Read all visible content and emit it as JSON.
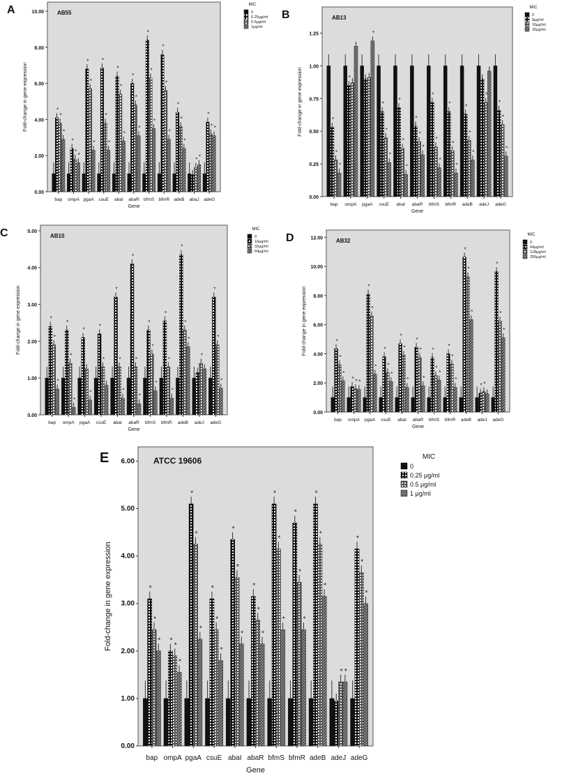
{
  "chart_data": [
    {
      "type": "bar",
      "panel": "A",
      "title": "AB55",
      "xlabel": "Gene",
      "ylabel": "Fold-change in gene expression",
      "ylim": [
        0,
        10.5
      ],
      "yticks": [
        "0.00",
        "2.00",
        "4.00",
        "6.00",
        "8.00",
        "10.00"
      ],
      "ytick_values": [
        0,
        2,
        4,
        6,
        8,
        10
      ],
      "legend_title": "MIC",
      "legend_position": "right",
      "categories": [
        "bap",
        "ompA",
        "pgaA",
        "csuE",
        "abaI",
        "abaR",
        "bfmS",
        "bfmR",
        "adeB",
        "abaJ",
        "adeG"
      ],
      "series": [
        {
          "name": "0",
          "values": [
            1,
            1,
            1,
            1,
            1,
            1,
            1,
            1,
            1,
            1,
            1
          ]
        },
        {
          "name": "0.25μg/ml",
          "values": [
            4.1,
            2.4,
            6.8,
            6.85,
            6.4,
            6.0,
            8.4,
            7.6,
            4.4,
            0.95,
            3.85
          ]
        },
        {
          "name": "0.5μg/ml",
          "values": [
            3.8,
            1.8,
            5.7,
            3.8,
            5.4,
            4.8,
            6.3,
            5.6,
            3.6,
            1.35,
            3.2
          ]
        },
        {
          "name": "1μg/ml",
          "values": [
            2.9,
            1.6,
            2.3,
            2.3,
            2.8,
            3.1,
            3.5,
            2.9,
            2.4,
            1.5,
            3.1
          ]
        }
      ],
      "significance_marker": "*"
    },
    {
      "type": "bar",
      "panel": "B",
      "title": "AB13",
      "xlabel": "Gene",
      "ylabel": "Fold-change in gene expression",
      "ylim": [
        0,
        1.45
      ],
      "yticks": [
        "0.00",
        "0.25",
        "0.50",
        "0.75",
        "1.00",
        "1.25"
      ],
      "ytick_values": [
        0,
        0.25,
        0.5,
        0.75,
        1,
        1.25
      ],
      "legend_title": "MIC",
      "legend_position": "right",
      "categories": [
        "bap",
        "ompA",
        "pgaA",
        "csuE",
        "abaI",
        "abaR",
        "bfmS",
        "bfmR",
        "adeB",
        "adeJ",
        "adeG"
      ],
      "series": [
        {
          "name": "0",
          "values": [
            1,
            1,
            1,
            1,
            1,
            1,
            1,
            1,
            1,
            1,
            1
          ]
        },
        {
          "name": "8μg/ml",
          "values": [
            0.53,
            0.85,
            0.9,
            0.65,
            0.68,
            0.54,
            0.72,
            0.65,
            0.63,
            0.9,
            0.66
          ]
        },
        {
          "name": "16μg/ml",
          "values": [
            0.28,
            0.87,
            0.91,
            0.45,
            0.37,
            0.42,
            0.38,
            0.35,
            0.43,
            0.72,
            0.55
          ]
        },
        {
          "name": "32μg/ml",
          "values": [
            0.18,
            1.15,
            1.19,
            0.26,
            0.17,
            0.32,
            0.22,
            0.18,
            0.28,
            0.96,
            0.31
          ]
        }
      ],
      "significance_marker": "*"
    },
    {
      "type": "bar",
      "panel": "C",
      "title": "AB10",
      "xlabel": "Gene",
      "ylabel": "Fold-change in gene expression",
      "ylim": [
        0,
        5.15
      ],
      "yticks": [
        "0.00",
        "1.00",
        "2.00",
        "3.00",
        "4.00",
        "5.00"
      ],
      "ytick_values": [
        0,
        1,
        2,
        3,
        4,
        5
      ],
      "legend_title": "MIC",
      "legend_position": "right",
      "categories": [
        "bap",
        "ompA",
        "pgaA",
        "csuE",
        "abaI",
        "abaR",
        "bfmS",
        "bfmR",
        "adeB",
        "adeJ",
        "adeG"
      ],
      "series": [
        {
          "name": "0",
          "values": [
            1,
            1,
            1,
            1,
            1,
            1,
            1,
            1,
            1,
            1,
            1
          ]
        },
        {
          "name": "16μg/ml",
          "values": [
            2.4,
            2.3,
            2.1,
            2.2,
            3.2,
            4.1,
            2.3,
            2.55,
            4.35,
            1.15,
            3.2
          ]
        },
        {
          "name": "32μg/ml",
          "values": [
            1.9,
            1.4,
            1.25,
            1.3,
            1.3,
            1.3,
            1.65,
            1.3,
            2.3,
            1.4,
            1.9
          ]
        },
        {
          "name": "64μg/ml",
          "values": [
            0.7,
            0.2,
            0.4,
            0.8,
            0.45,
            0.3,
            0.65,
            0.45,
            1.85,
            1.25,
            0.72
          ]
        }
      ],
      "significance_marker": "*"
    },
    {
      "type": "bar",
      "panel": "D",
      "title": "AB32",
      "xlabel": "Gene",
      "ylabel": "Fold-change in gene expression",
      "ylim": [
        0,
        12.5
      ],
      "yticks": [
        "0.00",
        "2.00",
        "4.00",
        "6.00",
        "8.00",
        "10.00",
        "12.00"
      ],
      "ytick_values": [
        0,
        2,
        4,
        6,
        8,
        10,
        12
      ],
      "legend_title": "MIC",
      "legend_position": "right",
      "categories": [
        "bap",
        "ompA",
        "pgaA",
        "csuE",
        "abaI",
        "abaR",
        "bfmS",
        "bfmR",
        "adeB",
        "adeJ",
        "adeG"
      ],
      "series": [
        {
          "name": "0",
          "values": [
            1,
            1,
            1,
            1,
            1,
            1,
            1,
            1,
            1,
            1,
            1
          ]
        },
        {
          "name": "64μg/ml",
          "values": [
            4.35,
            1.75,
            8.1,
            3.8,
            4.7,
            4.45,
            3.75,
            4.0,
            10.65,
            1.3,
            9.65
          ]
        },
        {
          "name": "128μg/ml",
          "values": [
            3.25,
            1.6,
            6.6,
            2.7,
            3.9,
            3.75,
            2.5,
            3.3,
            9.3,
            1.4,
            6.25
          ]
        },
        {
          "name": "256μg/ml",
          "values": [
            2.15,
            1.55,
            2.6,
            2.1,
            1.7,
            1.8,
            2.2,
            1.7,
            6.35,
            1.25,
            5.1
          ]
        }
      ],
      "significance_marker": "*"
    },
    {
      "type": "bar",
      "panel": "E",
      "title": "ATCC 19606",
      "xlabel": "Gene",
      "ylabel": "Fold-change in gene expression",
      "ylim": [
        0,
        6.3
      ],
      "yticks": [
        "0.00",
        "1.00",
        "2.00",
        "3.00",
        "4.00",
        "5.00",
        "6.00"
      ],
      "ytick_values": [
        0,
        1,
        2,
        3,
        4,
        5,
        6
      ],
      "legend_title": "MIC",
      "legend_position": "right",
      "categories": [
        "bap",
        "ompA",
        "pgaA",
        "csuE",
        "abaI",
        "abaR",
        "bfmS",
        "bfmR",
        "adeB",
        "adeJ",
        "adeG"
      ],
      "series": [
        {
          "name": "0",
          "values": [
            1,
            1,
            1,
            1,
            1,
            1,
            1,
            1,
            1,
            1,
            1
          ]
        },
        {
          "name": "0.25 μg/ml",
          "values": [
            3.1,
            2.0,
            5.1,
            3.1,
            4.35,
            3.15,
            5.1,
            4.7,
            5.1,
            0.95,
            4.15
          ]
        },
        {
          "name": "0.5 μg/ml",
          "values": [
            2.45,
            1.9,
            4.25,
            2.45,
            3.55,
            2.65,
            4.15,
            3.45,
            4.25,
            1.35,
            3.65
          ]
        },
        {
          "name": "1 μg/ml",
          "values": [
            2.0,
            1.55,
            2.25,
            1.8,
            2.15,
            2.15,
            2.45,
            2.45,
            3.15,
            1.35,
            3.0
          ]
        }
      ],
      "significance_marker": "*"
    }
  ]
}
